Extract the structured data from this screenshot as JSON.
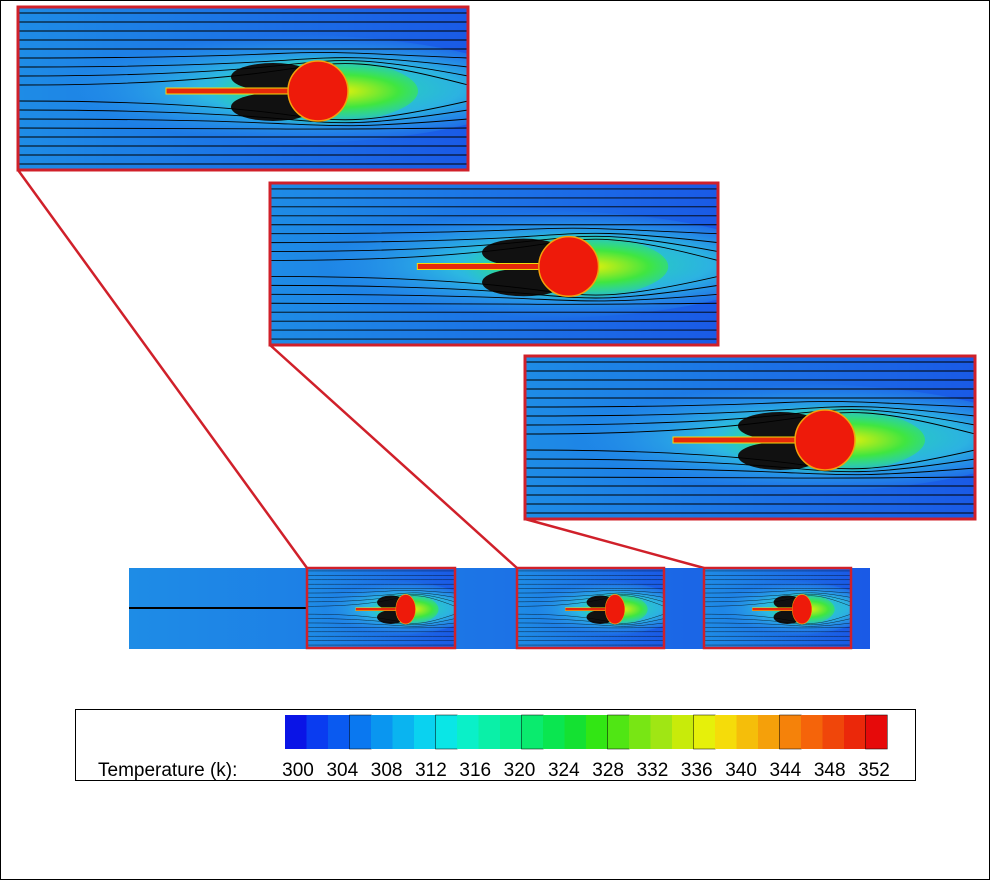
{
  "colorbar": {
    "label": "Temperature (k):",
    "ticks": [
      300,
      304,
      308,
      312,
      316,
      320,
      324,
      328,
      332,
      336,
      340,
      344,
      348,
      352
    ],
    "colors": [
      "#0a14e6",
      "#0a3cf0",
      "#0a5af0",
      "#0a78f0",
      "#0a96f0",
      "#0ab4f0",
      "#0ad2f0",
      "#0ae6e6",
      "#0af0c8",
      "#0af0a8",
      "#0af08c",
      "#0aeb6e",
      "#0ae650",
      "#14e132",
      "#32e614",
      "#50e614",
      "#78e614",
      "#a0e614",
      "#c8eb0a",
      "#e6f00a",
      "#f5dc0a",
      "#f5be0a",
      "#f5a00a",
      "#f5820a",
      "#f5640a",
      "#f0460a",
      "#eb280a",
      "#e60a0a"
    ]
  }
}
